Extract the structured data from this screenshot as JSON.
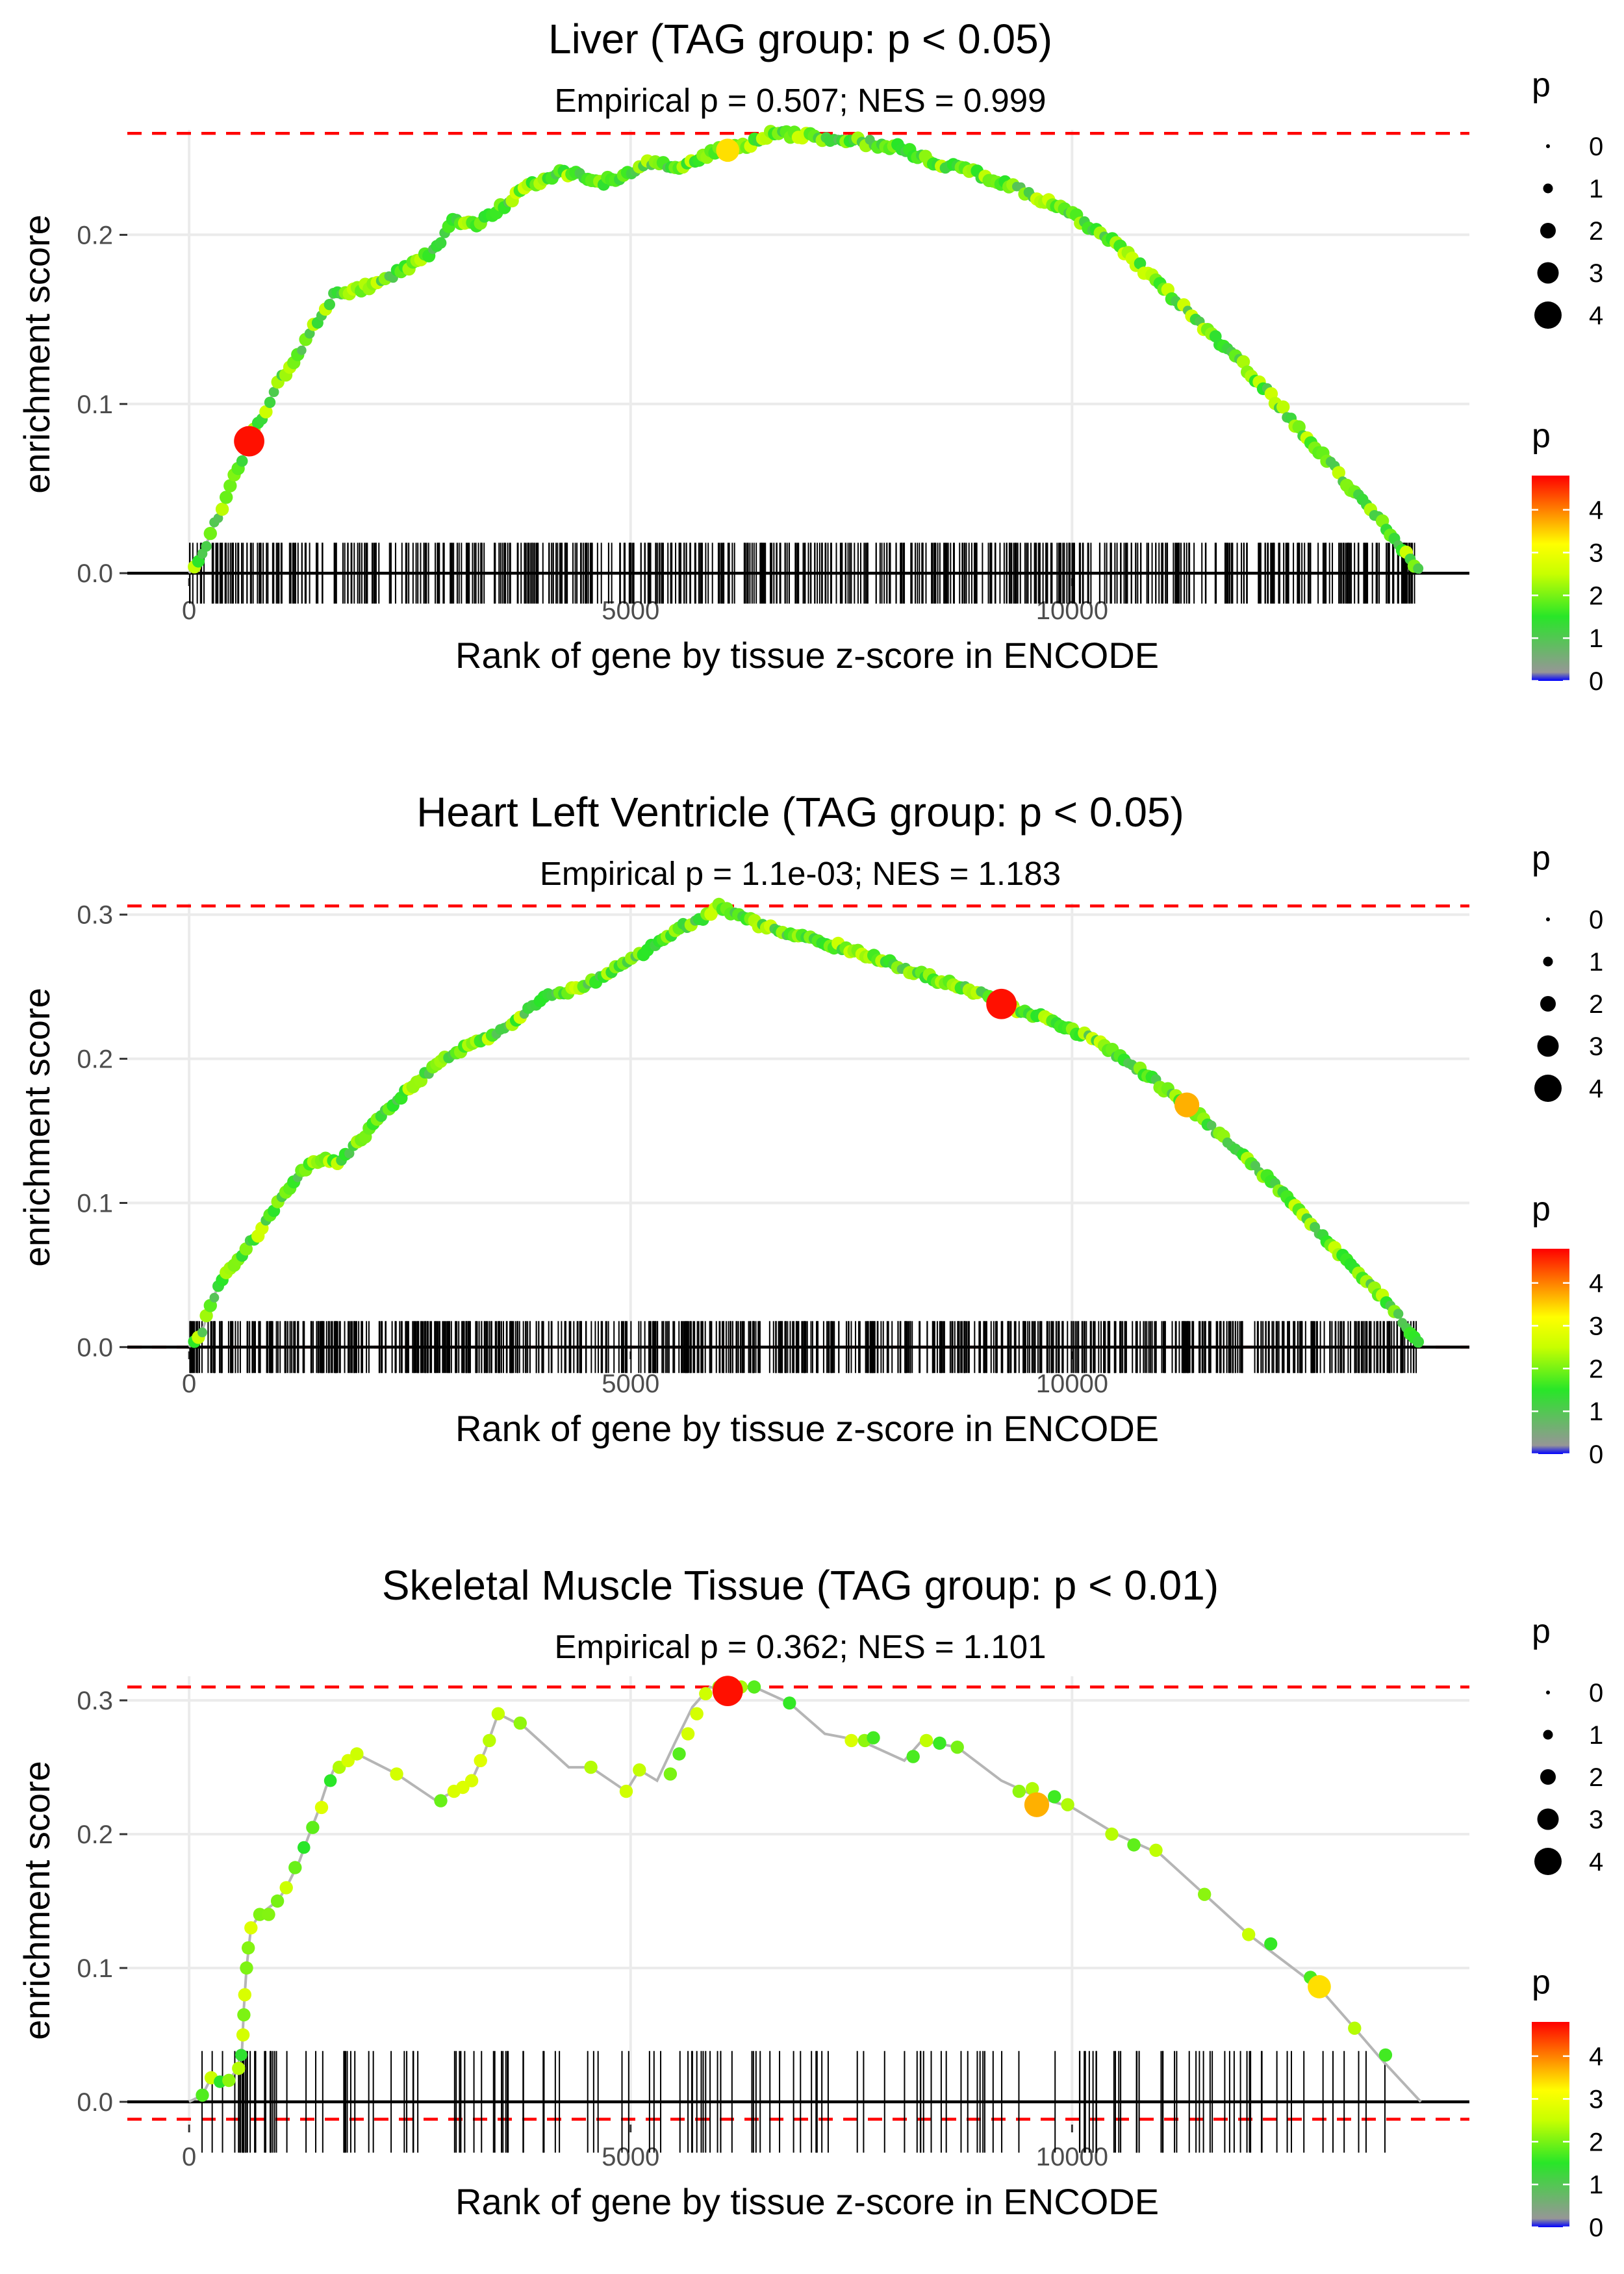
{
  "figure": {
    "legend_size_title": "p",
    "legend_color_title": "p"
  },
  "chart_data": [
    {
      "type": "line",
      "title": "Liver (TAG group: p < 0.05)",
      "subtitle": "Empirical p = 0.507; NES = 0.999",
      "xlabel": "Rank of gene by tissue z-score in ENCODE",
      "ylabel": "enrichment score",
      "xlim": [
        -700,
        14500
      ],
      "ylim": [
        -0.003,
        0.262
      ],
      "xticks": [
        0,
        5000,
        10000
      ],
      "xtick_labels": [
        "0",
        "5000",
        "10000"
      ],
      "yticks": [
        0.0,
        0.1,
        0.2
      ],
      "ytick_labels": [
        "0.0",
        "0.1",
        "0.2"
      ],
      "max_es": 0.26,
      "min_es": 0.0,
      "curve": [
        [
          0,
          0
        ],
        [
          150,
          0.012
        ],
        [
          300,
          0.03
        ],
        [
          500,
          0.055
        ],
        [
          680,
          0.078
        ],
        [
          850,
          0.095
        ],
        [
          1000,
          0.112
        ],
        [
          1200,
          0.125
        ],
        [
          1400,
          0.145
        ],
        [
          1650,
          0.165
        ],
        [
          1900,
          0.168
        ],
        [
          2200,
          0.172
        ],
        [
          2500,
          0.182
        ],
        [
          2800,
          0.192
        ],
        [
          3000,
          0.21
        ],
        [
          3200,
          0.205
        ],
        [
          3500,
          0.215
        ],
        [
          3800,
          0.228
        ],
        [
          4100,
          0.235
        ],
        [
          4400,
          0.238
        ],
        [
          4600,
          0.23
        ],
        [
          4900,
          0.235
        ],
        [
          5200,
          0.242
        ],
        [
          5600,
          0.24
        ],
        [
          6000,
          0.25
        ],
        [
          6300,
          0.252
        ],
        [
          6600,
          0.26
        ],
        [
          7000,
          0.258
        ],
        [
          7500,
          0.256
        ],
        [
          8000,
          0.252
        ],
        [
          8500,
          0.242
        ],
        [
          9000,
          0.235
        ],
        [
          9500,
          0.225
        ],
        [
          10000,
          0.212
        ],
        [
          10500,
          0.195
        ],
        [
          11000,
          0.17
        ],
        [
          11500,
          0.145
        ],
        [
          12000,
          0.12
        ],
        [
          12500,
          0.09
        ],
        [
          13000,
          0.06
        ],
        [
          13500,
          0.03
        ],
        [
          13950,
          0.0
        ]
      ],
      "curve_point_step": 45,
      "highlight_points": [
        {
          "x": 680,
          "y": 0.078,
          "p": 4.7
        },
        {
          "x": 6100,
          "y": 0.25,
          "p": 3.4
        }
      ],
      "gene_ranks": {
        "count": 620,
        "from": 0,
        "to": 13900,
        "seed": 11
      },
      "rug_height_es": 0.018,
      "size_legend": [
        0,
        1,
        2,
        3,
        4
      ],
      "color_legend": {
        "ticks": [
          0,
          1,
          2,
          3,
          4
        ],
        "min": 0,
        "max": 4.8
      }
    },
    {
      "type": "line",
      "title": "Heart Left Ventricle (TAG group: p < 0.05)",
      "subtitle": "Empirical p = 1.1e-03; NES = 1.183",
      "xlabel": "Rank of gene by tissue z-score in ENCODE",
      "ylabel": "enrichment score",
      "xlim": [
        -700,
        14500
      ],
      "ylim": [
        -0.003,
        0.308
      ],
      "xticks": [
        0,
        5000,
        10000
      ],
      "xtick_labels": [
        "0",
        "5000",
        "10000"
      ],
      "yticks": [
        0.0,
        0.1,
        0.2,
        0.3
      ],
      "ytick_labels": [
        "0.0",
        "0.1",
        "0.2",
        "0.3"
      ],
      "max_es": 0.306,
      "min_es": 0.0,
      "curve": [
        [
          0,
          0
        ],
        [
          150,
          0.012
        ],
        [
          300,
          0.038
        ],
        [
          500,
          0.058
        ],
        [
          800,
          0.08
        ],
        [
          1000,
          0.1
        ],
        [
          1200,
          0.115
        ],
        [
          1400,
          0.13
        ],
        [
          1700,
          0.128
        ],
        [
          2000,
          0.148
        ],
        [
          2300,
          0.168
        ],
        [
          2600,
          0.185
        ],
        [
          2900,
          0.2
        ],
        [
          3200,
          0.21
        ],
        [
          3500,
          0.218
        ],
        [
          3800,
          0.232
        ],
        [
          4100,
          0.245
        ],
        [
          4400,
          0.248
        ],
        [
          4700,
          0.258
        ],
        [
          5000,
          0.268
        ],
        [
          5300,
          0.28
        ],
        [
          5600,
          0.292
        ],
        [
          5850,
          0.298
        ],
        [
          6000,
          0.306
        ],
        [
          6300,
          0.297
        ],
        [
          6600,
          0.29
        ],
        [
          7000,
          0.283
        ],
        [
          7500,
          0.276
        ],
        [
          8000,
          0.265
        ],
        [
          8500,
          0.254
        ],
        [
          9000,
          0.245
        ],
        [
          9200,
          0.238
        ],
        [
          9700,
          0.228
        ],
        [
          10200,
          0.215
        ],
        [
          10700,
          0.195
        ],
        [
          11300,
          0.168
        ],
        [
          11800,
          0.14
        ],
        [
          12300,
          0.112
        ],
        [
          12800,
          0.08
        ],
        [
          13300,
          0.048
        ],
        [
          13700,
          0.022
        ],
        [
          13950,
          0.0
        ]
      ],
      "curve_point_step": 45,
      "highlight_points": [
        {
          "x": 9200,
          "y": 0.238,
          "p": 4.7
        },
        {
          "x": 11300,
          "y": 0.168,
          "p": 3.7
        }
      ],
      "gene_ranks": {
        "count": 760,
        "from": 0,
        "to": 13900,
        "seed": 27
      },
      "rug_height_es": 0.018,
      "size_legend": [
        0,
        1,
        2,
        3,
        4
      ],
      "color_legend": {
        "ticks": [
          0,
          1,
          2,
          3,
          4
        ],
        "min": 0,
        "max": 4.8
      }
    },
    {
      "type": "line",
      "title": "Skeletal Muscle Tissue (TAG group: p < 0.01)",
      "subtitle": "Empirical p = 0.362; NES = 1.101",
      "xlabel": "Rank of gene by tissue z-score in ENCODE",
      "ylabel": "enrichment score",
      "xlim": [
        -700,
        14500
      ],
      "ylim": [
        -0.017,
        0.318
      ],
      "xticks": [
        0,
        5000,
        10000
      ],
      "xtick_labels": [
        "0",
        "5000",
        "10000"
      ],
      "yticks": [
        0.0,
        0.1,
        0.2,
        0.3
      ],
      "ytick_labels": [
        "0.0",
        "0.1",
        "0.2",
        "0.3"
      ],
      "max_es": 0.31,
      "min_es": -0.013,
      "curve": [
        [
          0,
          0
        ],
        [
          150,
          0.005
        ],
        [
          250,
          0.018
        ],
        [
          450,
          0.016
        ],
        [
          550,
          0.025
        ],
        [
          600,
          0.04
        ],
        [
          620,
          0.07
        ],
        [
          650,
          0.1
        ],
        [
          700,
          0.13
        ],
        [
          800,
          0.14
        ],
        [
          1000,
          0.15
        ],
        [
          1100,
          0.16
        ],
        [
          1250,
          0.18
        ],
        [
          1350,
          0.198
        ],
        [
          1450,
          0.215
        ],
        [
          1550,
          0.235
        ],
        [
          1650,
          0.25
        ],
        [
          1800,
          0.255
        ],
        [
          1900,
          0.26
        ],
        [
          2350,
          0.245
        ],
        [
          2800,
          0.225
        ],
        [
          3000,
          0.232
        ],
        [
          3200,
          0.24
        ],
        [
          3350,
          0.262
        ],
        [
          3500,
          0.29
        ],
        [
          3800,
          0.28
        ],
        [
          4300,
          0.25
        ],
        [
          4550,
          0.25
        ],
        [
          4950,
          0.232
        ],
        [
          5100,
          0.248
        ],
        [
          5300,
          0.24
        ],
        [
          5500,
          0.268
        ],
        [
          5700,
          0.295
        ],
        [
          5900,
          0.31
        ],
        [
          6100,
          0.307
        ],
        [
          6400,
          0.31
        ],
        [
          6800,
          0.298
        ],
        [
          7200,
          0.275
        ],
        [
          7600,
          0.27
        ],
        [
          8100,
          0.255
        ],
        [
          8300,
          0.27
        ],
        [
          8700,
          0.265
        ],
        [
          9200,
          0.24
        ],
        [
          9600,
          0.228
        ],
        [
          10000,
          0.22
        ],
        [
          10500,
          0.2
        ],
        [
          11000,
          0.185
        ],
        [
          11500,
          0.155
        ],
        [
          12000,
          0.125
        ],
        [
          12500,
          0.1
        ],
        [
          12800,
          0.085
        ],
        [
          13200,
          0.055
        ],
        [
          13500,
          0.032
        ],
        [
          13950,
          0.0
        ]
      ],
      "points": [
        [
          150,
          0.005
        ],
        [
          250,
          0.018
        ],
        [
          350,
          0.015
        ],
        [
          450,
          0.016
        ],
        [
          560,
          0.025
        ],
        [
          590,
          0.035
        ],
        [
          610,
          0.05
        ],
        [
          620,
          0.065
        ],
        [
          630,
          0.08
        ],
        [
          650,
          0.1
        ],
        [
          670,
          0.115
        ],
        [
          700,
          0.13
        ],
        [
          800,
          0.14
        ],
        [
          900,
          0.14
        ],
        [
          1000,
          0.15
        ],
        [
          1100,
          0.16
        ],
        [
          1200,
          0.175
        ],
        [
          1300,
          0.19
        ],
        [
          1400,
          0.205
        ],
        [
          1500,
          0.22
        ],
        [
          1600,
          0.24
        ],
        [
          1700,
          0.25
        ],
        [
          1800,
          0.255
        ],
        [
          1900,
          0.26
        ],
        [
          2350,
          0.245
        ],
        [
          2850,
          0.225
        ],
        [
          3000,
          0.232
        ],
        [
          3100,
          0.235
        ],
        [
          3200,
          0.24
        ],
        [
          3300,
          0.255
        ],
        [
          3400,
          0.27
        ],
        [
          3500,
          0.29
        ],
        [
          3750,
          0.283
        ],
        [
          4550,
          0.25
        ],
        [
          4950,
          0.232
        ],
        [
          5100,
          0.248
        ],
        [
          5450,
          0.245
        ],
        [
          5550,
          0.26
        ],
        [
          5650,
          0.275
        ],
        [
          5750,
          0.29
        ],
        [
          5850,
          0.305
        ],
        [
          6000,
          0.31
        ],
        [
          6100,
          0.307
        ],
        [
          6250,
          0.31
        ],
        [
          6400,
          0.31
        ],
        [
          6800,
          0.298
        ],
        [
          7500,
          0.27
        ],
        [
          7650,
          0.27
        ],
        [
          7750,
          0.272
        ],
        [
          8200,
          0.258
        ],
        [
          8350,
          0.27
        ],
        [
          8500,
          0.268
        ],
        [
          8700,
          0.265
        ],
        [
          9400,
          0.232
        ],
        [
          9550,
          0.234
        ],
        [
          9800,
          0.228
        ],
        [
          9950,
          0.222
        ],
        [
          10450,
          0.2
        ],
        [
          10700,
          0.192
        ],
        [
          10950,
          0.188
        ],
        [
          11500,
          0.155
        ],
        [
          12000,
          0.125
        ],
        [
          12250,
          0.118
        ],
        [
          12700,
          0.093
        ],
        [
          13200,
          0.055
        ],
        [
          13550,
          0.035
        ]
      ],
      "highlight_points": [
        {
          "x": 6100,
          "y": 0.307,
          "p": 4.7
        },
        {
          "x": 9600,
          "y": 0.222,
          "p": 3.7
        },
        {
          "x": 12800,
          "y": 0.086,
          "p": 3.4
        }
      ],
      "gene_ranks": {
        "count": 150,
        "from": 50,
        "to": 13550,
        "seed": 43,
        "extra": [
          560,
          580,
          600,
          610,
          620,
          640,
          660,
          5650,
          5700,
          5750,
          5800,
          5850,
          5900
        ]
      },
      "rug_height_es": 0.038,
      "size_legend": [
        0,
        1,
        2,
        3,
        4
      ],
      "color_legend": {
        "ticks": [
          0,
          1,
          2,
          3,
          4
        ],
        "min": 0,
        "max": 4.8
      }
    }
  ]
}
